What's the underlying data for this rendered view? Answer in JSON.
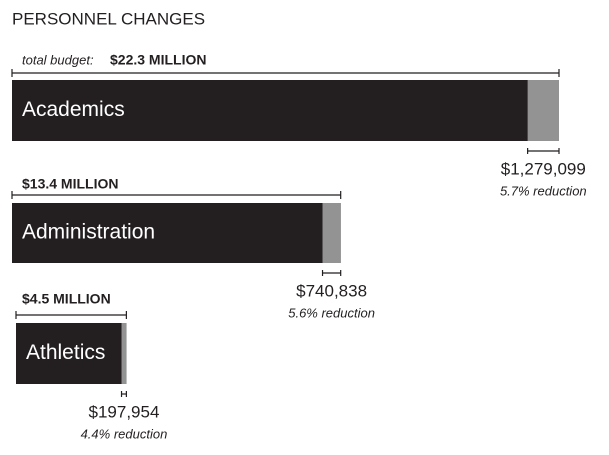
{
  "chart_data": {
    "type": "bar",
    "orientation": "horizontal",
    "title": "PERSONNEL CHANGES",
    "budget_prefix": "total budget:",
    "categories": [
      "Academics",
      "Administration",
      "Athletics"
    ],
    "budgets": {
      "values": [
        22300000,
        13400000,
        4500000
      ],
      "value_labels": [
        "$22.3 MILLION",
        "$13.4 MILLION",
        "$4.5 MILLION"
      ]
    },
    "reductions": {
      "values": [
        1279099,
        740838,
        197954
      ],
      "value_labels": [
        "$1,279,099",
        "$740,838",
        "$197,954"
      ]
    },
    "reduction_percents": {
      "values": [
        5.7,
        5.6,
        4.4
      ],
      "value_labels": [
        "5.7% reduction",
        "5.6% reduction",
        "4.4% reduction"
      ]
    },
    "color": "#231f20",
    "reduction_color": "#939393"
  }
}
